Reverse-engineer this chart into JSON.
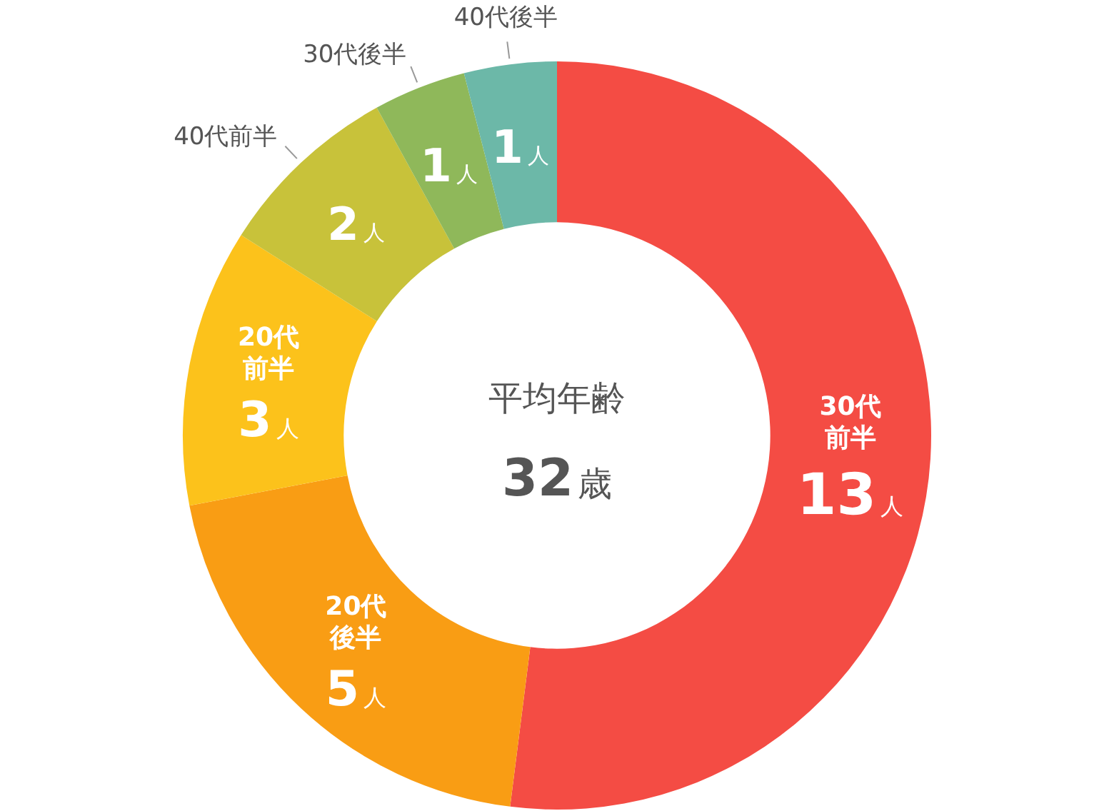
{
  "chart_data": {
    "type": "donut",
    "categories": [
      "30代前半",
      "20代後半",
      "20代前半",
      "40代前半",
      "30代後半",
      "40代後半"
    ],
    "values": [
      13,
      5,
      3,
      2,
      1,
      1
    ],
    "colors": [
      "#f44c44",
      "#f99d14",
      "#fcc21b",
      "#c8c23a",
      "#8fb85a",
      "#6cb8a8"
    ],
    "value_labels": [
      "13人",
      "5人",
      "3人",
      "2人",
      "1人",
      "1人"
    ],
    "annotations": [
      "平均年齢",
      "32歳"
    ],
    "legend": false
  }
}
